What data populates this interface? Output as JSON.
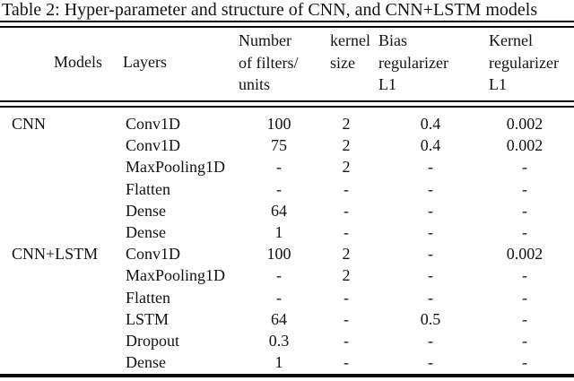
{
  "title": "Table 2: Hyper-parameter and structure of CNN, and CNN+LSTM models",
  "colors": {
    "text": "#121212",
    "rule": "#0a0a0a",
    "background": "#ffffff"
  },
  "table": {
    "columns": {
      "models": "Models",
      "layers": "Layers",
      "filters": "Number\nof filters/\nunits",
      "kernel_size": "kernel\nsize",
      "bias_reg": "Bias\nregularizer\nL1",
      "kernel_reg": "Kernel\nregularizer\nL1"
    },
    "rows": [
      {
        "model": "CNN",
        "layer": "Conv1D",
        "filters": "100",
        "kernel_size": "2",
        "bias_reg": "0.4",
        "kernel_reg": "0.002"
      },
      {
        "model": "",
        "layer": "Conv1D",
        "filters": "75",
        "kernel_size": "2",
        "bias_reg": "0.4",
        "kernel_reg": "0.002"
      },
      {
        "model": "",
        "layer": "MaxPooling1D",
        "filters": "-",
        "kernel_size": "2",
        "bias_reg": "-",
        "kernel_reg": "-"
      },
      {
        "model": "",
        "layer": "Flatten",
        "filters": "-",
        "kernel_size": "-",
        "bias_reg": "-",
        "kernel_reg": "-"
      },
      {
        "model": "",
        "layer": "Dense",
        "filters": "64",
        "kernel_size": "-",
        "bias_reg": "-",
        "kernel_reg": "-"
      },
      {
        "model": "",
        "layer": "Dense",
        "filters": "1",
        "kernel_size": "-",
        "bias_reg": "-",
        "kernel_reg": "-"
      },
      {
        "model": "CNN+LSTM",
        "layer": "Conv1D",
        "filters": "100",
        "kernel_size": "2",
        "bias_reg": "-",
        "kernel_reg": "0.002"
      },
      {
        "model": "",
        "layer": "MaxPooling1D",
        "filters": "-",
        "kernel_size": "2",
        "bias_reg": "-",
        "kernel_reg": "-"
      },
      {
        "model": "",
        "layer": "Flatten",
        "filters": "-",
        "kernel_size": "-",
        "bias_reg": "-",
        "kernel_reg": "-"
      },
      {
        "model": "",
        "layer": "LSTM",
        "filters": "64",
        "kernel_size": "-",
        "bias_reg": "0.5",
        "kernel_reg": "-"
      },
      {
        "model": "",
        "layer": "Dropout",
        "filters": "0.3",
        "kernel_size": "-",
        "bias_reg": "-",
        "kernel_reg": "-"
      },
      {
        "model": "",
        "layer": "Dense",
        "filters": "1",
        "kernel_size": "-",
        "bias_reg": "-",
        "kernel_reg": "-"
      }
    ]
  }
}
